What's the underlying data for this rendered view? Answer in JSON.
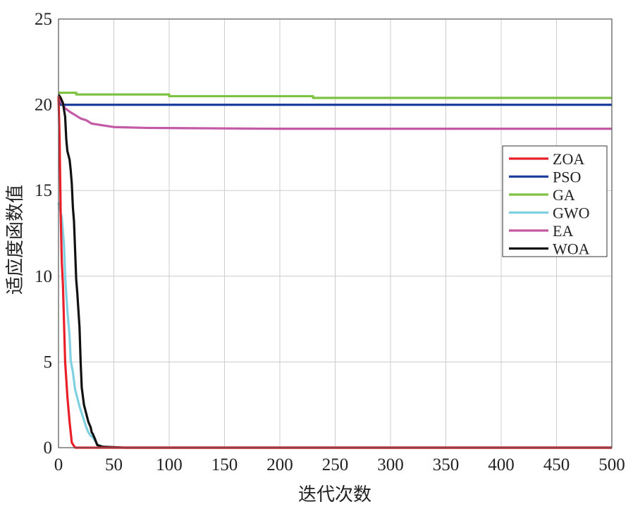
{
  "chart_data": {
    "type": "line",
    "title": "",
    "xlabel": "迭代次数",
    "ylabel": "适应度函数值",
    "xlim": [
      0,
      500
    ],
    "ylim": [
      0,
      25
    ],
    "xticks": [
      0,
      50,
      100,
      150,
      200,
      250,
      300,
      350,
      400,
      450,
      500
    ],
    "yticks": [
      0,
      5,
      10,
      15,
      20,
      25
    ],
    "grid": true,
    "legend_position": "right",
    "series": [
      {
        "name": "ZOA",
        "color": "#e8202a",
        "x": [
          0,
          1,
          2,
          3,
          4,
          6,
          8,
          10,
          12,
          15,
          20,
          30,
          500
        ],
        "y": [
          20.5,
          18.0,
          13.5,
          10.8,
          9.5,
          5.0,
          3.0,
          1.5,
          0.3,
          0.0,
          0.0,
          0.0,
          0.0
        ]
      },
      {
        "name": "PSO",
        "color": "#1f3f9e",
        "x": [
          0,
          2,
          500
        ],
        "y": [
          20.3,
          20.0,
          20.0
        ]
      },
      {
        "name": "GA",
        "color": "#7ec242",
        "x": [
          0,
          15,
          16,
          40,
          80,
          100,
          220,
          230,
          300,
          500
        ],
        "y": [
          20.7,
          20.7,
          20.6,
          20.6,
          20.6,
          20.5,
          20.5,
          20.4,
          20.4,
          20.4
        ],
        "step": true
      },
      {
        "name": "GWO",
        "color": "#7fd0e0",
        "x": [
          0,
          1,
          3,
          5,
          6,
          8,
          10,
          11,
          13,
          15,
          17,
          19,
          21,
          23,
          25,
          27,
          29,
          31,
          33,
          35,
          40,
          50,
          500
        ],
        "y": [
          14.3,
          14.0,
          13.4,
          11.8,
          10.0,
          8.0,
          6.5,
          5.1,
          4.4,
          3.4,
          2.9,
          2.4,
          2.0,
          1.6,
          1.2,
          0.9,
          0.7,
          0.6,
          0.4,
          0.2,
          0.05,
          0.0,
          0.0
        ]
      },
      {
        "name": "EA",
        "color": "#c45aa6",
        "x": [
          0,
          3,
          6,
          10,
          15,
          20,
          25,
          30,
          35,
          40,
          50,
          80,
          200,
          500
        ],
        "y": [
          20.5,
          20.1,
          19.8,
          19.6,
          19.4,
          19.2,
          19.1,
          18.9,
          18.85,
          18.8,
          18.7,
          18.65,
          18.6,
          18.6
        ]
      },
      {
        "name": "WOA",
        "color": "#111111",
        "x": [
          0,
          2,
          4,
          6,
          7,
          8,
          10,
          11,
          12,
          13,
          14,
          15,
          16,
          17,
          18,
          19,
          20,
          21,
          22,
          23,
          25,
          27,
          29,
          30,
          31,
          33,
          35,
          40,
          60,
          500
        ],
        "y": [
          20.6,
          20.4,
          20.1,
          19.3,
          18.0,
          17.3,
          16.8,
          16.2,
          15.4,
          14.0,
          13.2,
          11.5,
          9.8,
          9.0,
          8.0,
          7.0,
          5.0,
          3.5,
          3.0,
          2.5,
          2.0,
          1.5,
          1.2,
          0.9,
          0.8,
          0.5,
          0.15,
          0.05,
          0.0,
          0.0
        ]
      }
    ]
  }
}
